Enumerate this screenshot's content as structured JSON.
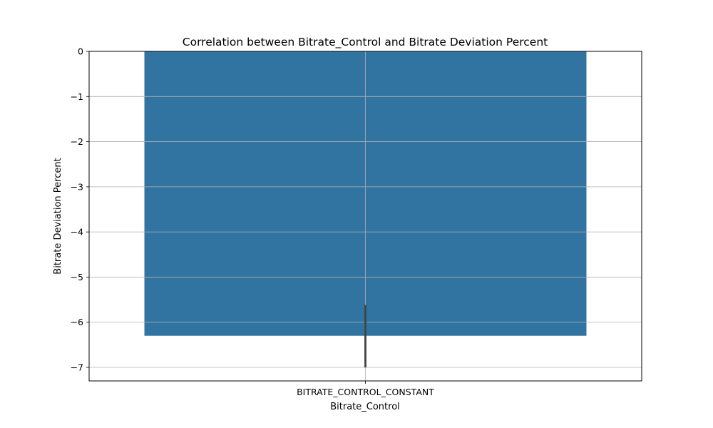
{
  "chart_data": {
    "type": "bar",
    "title": "Correlation between Bitrate_Control and Bitrate Deviation Percent",
    "xlabel": "Bitrate_Control",
    "ylabel": "Bitrate Deviation Percent",
    "categories": [
      "BITRATE_CONTROL_CONSTANT"
    ],
    "values": [
      -6.3
    ],
    "error_bars": [
      {
        "low": -7.0,
        "high": -5.62
      }
    ],
    "ylim": [
      -7.3,
      0
    ],
    "yticks": [
      0,
      -1,
      -2,
      -3,
      -4,
      -5,
      -6,
      -7
    ],
    "ytick_labels": [
      "0",
      "−1",
      "−2",
      "−3",
      "−4",
      "−5",
      "−6",
      "−7"
    ],
    "grid": true,
    "bar_color": "#3274a1",
    "errorbar_color": "#424242",
    "grid_color": "#b0b0b0"
  }
}
